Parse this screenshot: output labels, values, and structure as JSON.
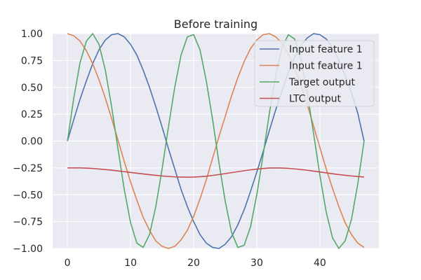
{
  "chart_data": {
    "type": "line",
    "title": "Before training",
    "xlabel": "",
    "ylabel": "",
    "xlim": [
      -2.35,
      49.35
    ],
    "ylim": [
      -1.0,
      1.0
    ],
    "xticks": [
      0,
      10,
      20,
      30,
      40
    ],
    "yticks": [
      -1.0,
      -0.75,
      -0.5,
      -0.25,
      0.0,
      0.25,
      0.5,
      0.75,
      1.0
    ],
    "xtick_labels": [
      "0",
      "10",
      "20",
      "30",
      "40"
    ],
    "ytick_labels": [
      "−1.00",
      "−0.75",
      "−0.50",
      "−0.25",
      "0.00",
      "0.25",
      "0.50",
      "0.75",
      "1.00"
    ],
    "grid": true,
    "legend_position": "upper right",
    "background": "#eaeaf2",
    "x": [
      0,
      1,
      2,
      3,
      4,
      5,
      6,
      7,
      8,
      9,
      10,
      11,
      12,
      13,
      14,
      15,
      16,
      17,
      18,
      19,
      20,
      21,
      22,
      23,
      24,
      25,
      26,
      27,
      28,
      29,
      30,
      31,
      32,
      33,
      34,
      35,
      36,
      37,
      38,
      39,
      40,
      41,
      42,
      43,
      44,
      45,
      46,
      47
    ],
    "series": [
      {
        "name": "Input feature 1",
        "color": "#4c72b0",
        "values": [
          0.0,
          0.2,
          0.39,
          0.56,
          0.72,
          0.85,
          0.94,
          0.99,
          1.0,
          0.97,
          0.9,
          0.8,
          0.66,
          0.5,
          0.32,
          0.13,
          -0.07,
          -0.26,
          -0.45,
          -0.61,
          -0.75,
          -0.87,
          -0.95,
          -0.99,
          -1.0,
          -0.96,
          -0.89,
          -0.78,
          -0.64,
          -0.47,
          -0.29,
          -0.1,
          0.1,
          0.29,
          0.47,
          0.64,
          0.78,
          0.89,
          0.96,
          1.0,
          0.99,
          0.95,
          0.87,
          0.75,
          0.61,
          0.45,
          0.26,
          0.0
        ]
      },
      {
        "name": "Input feature 1",
        "color": "#dd8452",
        "values": [
          1.0,
          0.98,
          0.93,
          0.84,
          0.72,
          0.57,
          0.4,
          0.21,
          0.01,
          -0.19,
          -0.38,
          -0.55,
          -0.71,
          -0.83,
          -0.93,
          -0.98,
          -1.0,
          -0.98,
          -0.92,
          -0.83,
          -0.7,
          -0.54,
          -0.36,
          -0.16,
          0.04,
          0.23,
          0.42,
          0.59,
          0.74,
          0.86,
          0.94,
          0.99,
          1.0,
          0.97,
          0.91,
          0.81,
          0.68,
          0.52,
          0.34,
          0.14,
          -0.06,
          -0.26,
          -0.44,
          -0.61,
          -0.76,
          -0.87,
          -0.95,
          -0.99
        ]
      },
      {
        "name": "Target output",
        "color": "#55a868",
        "values": [
          0.0,
          0.4,
          0.73,
          0.93,
          1.0,
          0.9,
          0.66,
          0.32,
          -0.07,
          -0.45,
          -0.76,
          -0.95,
          -0.99,
          -0.87,
          -0.61,
          -0.26,
          0.13,
          0.5,
          0.8,
          0.97,
          0.99,
          0.85,
          0.56,
          0.2,
          -0.2,
          -0.56,
          -0.85,
          -0.99,
          -0.97,
          -0.8,
          -0.5,
          -0.13,
          0.26,
          0.61,
          0.87,
          0.99,
          0.95,
          0.76,
          0.45,
          0.07,
          -0.32,
          -0.66,
          -0.9,
          -1.0,
          -0.93,
          -0.73,
          -0.4,
          0.0
        ]
      },
      {
        "name": "LTC output",
        "color": "#c44e52",
        "values": [
          -0.25,
          -0.25,
          -0.25,
          -0.252,
          -0.255,
          -0.26,
          -0.265,
          -0.271,
          -0.278,
          -0.285,
          -0.292,
          -0.299,
          -0.306,
          -0.313,
          -0.319,
          -0.325,
          -0.329,
          -0.333,
          -0.335,
          -0.336,
          -0.335,
          -0.332,
          -0.327,
          -0.32,
          -0.312,
          -0.303,
          -0.294,
          -0.285,
          -0.276,
          -0.268,
          -0.261,
          -0.255,
          -0.251,
          -0.25,
          -0.251,
          -0.254,
          -0.259,
          -0.265,
          -0.272,
          -0.28,
          -0.288,
          -0.296,
          -0.304,
          -0.312,
          -0.319,
          -0.325,
          -0.33,
          -0.335
        ]
      }
    ]
  }
}
